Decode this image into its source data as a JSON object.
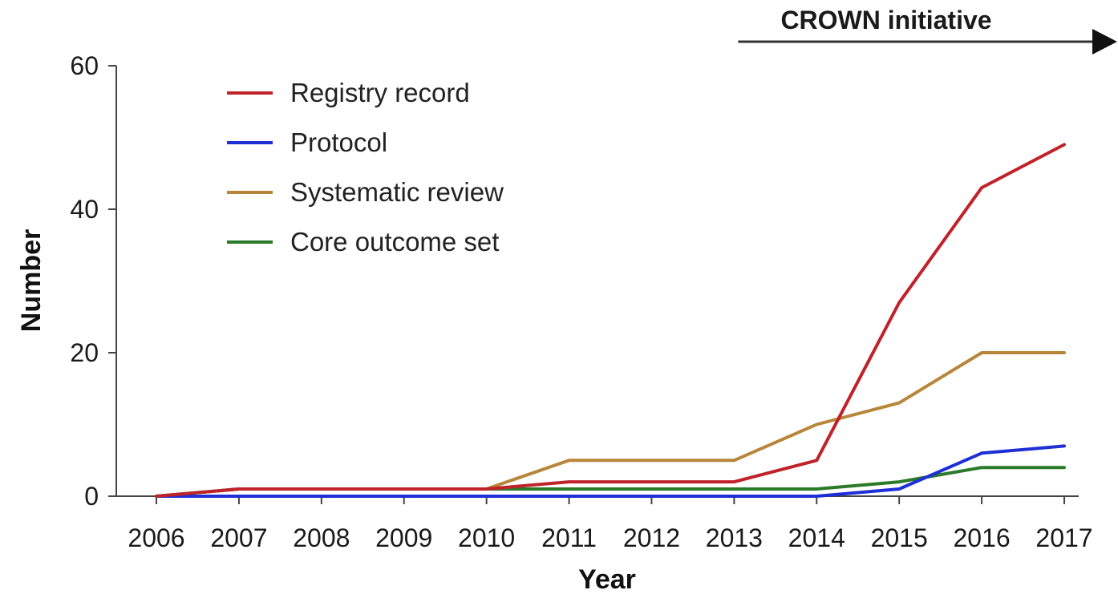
{
  "chart_data": {
    "type": "line",
    "title": "",
    "xlabel": "Year",
    "ylabel": "Number",
    "categories": [
      "2006",
      "2007",
      "2008",
      "2009",
      "2010",
      "2011",
      "2012",
      "2013",
      "2014",
      "2015",
      "2016",
      "2017"
    ],
    "ylim": [
      0,
      60
    ],
    "yticks": [
      0,
      20,
      40,
      60
    ],
    "grid": false,
    "legend_position": "top-left",
    "annotation": {
      "text": "CROWN initiative",
      "from_year": "2013",
      "arrow": "right"
    },
    "series": [
      {
        "name": "Registry record",
        "color": "#c0222a",
        "values": [
          0,
          1,
          1,
          1,
          1,
          2,
          2,
          2,
          5,
          27,
          43,
          49
        ]
      },
      {
        "name": "Protocol",
        "color": "#1f2fd6",
        "values": [
          0,
          0,
          0,
          0,
          0,
          0,
          0,
          0,
          0,
          1,
          6,
          7
        ]
      },
      {
        "name": "Systematic review",
        "color": "#b8863b",
        "values": [
          0,
          1,
          1,
          1,
          1,
          5,
          5,
          5,
          10,
          13,
          20,
          20
        ]
      },
      {
        "name": "Core outcome set",
        "color": "#2a7a2a",
        "values": [
          0,
          1,
          1,
          1,
          1,
          1,
          1,
          1,
          1,
          2,
          4,
          4
        ]
      }
    ]
  }
}
